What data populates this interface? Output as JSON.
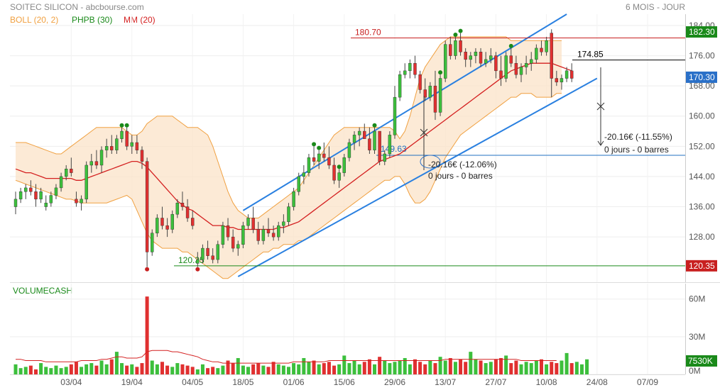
{
  "header": {
    "title": "SOITEC SILICON - abcbourse.com",
    "period": "6 MOIS - JOUR",
    "legend": [
      {
        "label": "BOLL (20, 2)",
        "color": "#f0a040"
      },
      {
        "label": "PHPB (30)",
        "color": "#1a8a1a"
      },
      {
        "label": "MM (20)",
        "color": "#d42020"
      }
    ]
  },
  "chart_data": [
    {
      "type": "candlestick",
      "panel": "price",
      "ylim": [
        116,
        187
      ],
      "y_ticks": [
        "184.00",
        "176.00",
        "168.00",
        "160.00",
        "152.00",
        "144.00",
        "136.00",
        "128.00"
      ],
      "x_ticks": [
        "03/04",
        "19/04",
        "04/05",
        "18/05",
        "01/06",
        "15/06",
        "29/06",
        "13/07",
        "27/07",
        "10/08",
        "24/08",
        "07/09"
      ],
      "x_tick_index": [
        11,
        23,
        35,
        45,
        55,
        65,
        75,
        85,
        95,
        105,
        115,
        125
      ],
      "ohlc": [
        [
          136,
          140,
          134,
          138
        ],
        [
          138,
          141,
          137,
          140
        ],
        [
          140,
          142,
          138,
          141
        ],
        [
          141,
          143,
          139,
          140
        ],
        [
          140,
          142,
          136,
          138
        ],
        [
          138,
          141,
          137,
          140
        ],
        [
          136,
          139,
          135,
          137
        ],
        [
          137,
          140,
          136,
          139
        ],
        [
          139,
          142,
          138,
          141
        ],
        [
          141,
          145,
          140,
          144
        ],
        [
          144,
          147,
          143,
          146
        ],
        [
          146,
          149,
          144,
          145
        ],
        [
          138,
          140,
          136,
          137
        ],
        [
          137,
          139,
          135,
          138
        ],
        [
          138,
          148,
          137,
          147
        ],
        [
          147,
          150,
          145,
          148
        ],
        [
          148,
          151,
          146,
          147
        ],
        [
          147,
          152,
          145,
          151
        ],
        [
          151,
          154,
          149,
          152
        ],
        [
          152,
          155,
          150,
          151
        ],
        [
          151,
          155,
          150,
          154
        ],
        [
          154,
          157,
          153,
          156
        ],
        [
          156,
          157,
          151,
          152
        ],
        [
          152,
          155,
          150,
          153
        ],
        [
          153,
          155,
          150,
          151
        ],
        [
          151,
          152,
          146,
          148
        ],
        [
          148,
          149,
          120,
          124
        ],
        [
          124,
          130,
          123,
          129
        ],
        [
          129,
          134,
          128,
          133
        ],
        [
          133,
          136,
          130,
          131
        ],
        [
          131,
          133,
          128,
          130
        ],
        [
          130,
          135,
          129,
          134
        ],
        [
          134,
          138,
          133,
          137
        ],
        [
          137,
          140,
          135,
          136
        ],
        [
          136,
          138,
          132,
          133
        ],
        [
          133,
          135,
          130,
          131
        ],
        [
          121,
          124,
          120,
          122
        ],
        [
          122,
          126,
          121,
          125
        ],
        [
          125,
          127,
          122,
          123
        ],
        [
          123,
          125,
          121,
          122
        ],
        [
          122,
          127,
          121,
          126
        ],
        [
          126,
          132,
          125,
          131
        ],
        [
          131,
          133,
          127,
          128
        ],
        [
          128,
          130,
          124,
          125
        ],
        [
          125,
          127,
          123,
          126
        ],
        [
          126,
          132,
          125,
          131
        ],
        [
          131,
          134,
          130,
          133
        ],
        [
          133,
          136,
          129,
          130
        ],
        [
          130,
          132,
          126,
          127
        ],
        [
          127,
          131,
          126,
          130
        ],
        [
          130,
          133,
          128,
          129
        ],
        [
          129,
          131,
          127,
          128
        ],
        [
          128,
          132,
          127,
          131
        ],
        [
          131,
          134,
          129,
          132
        ],
        [
          132,
          137,
          131,
          136
        ],
        [
          136,
          141,
          135,
          140
        ],
        [
          140,
          145,
          139,
          144
        ],
        [
          144,
          147,
          142,
          145
        ],
        [
          145,
          150,
          144,
          149
        ],
        [
          149,
          152,
          147,
          148
        ],
        [
          148,
          151,
          146,
          150
        ],
        [
          150,
          153,
          148,
          149
        ],
        [
          149,
          152,
          146,
          147
        ],
        [
          147,
          149,
          142,
          143
        ],
        [
          143,
          146,
          141,
          145
        ],
        [
          145,
          150,
          144,
          149
        ],
        [
          149,
          154,
          148,
          153
        ],
        [
          153,
          156,
          151,
          155
        ],
        [
          155,
          157,
          152,
          156
        ],
        [
          156,
          158,
          154,
          154
        ],
        [
          154,
          157,
          150,
          151
        ],
        [
          151,
          157,
          150,
          156
        ],
        [
          156,
          156,
          147,
          148
        ],
        [
          148,
          151,
          147,
          150
        ],
        [
          150,
          156,
          149,
          155
        ],
        [
          155,
          168,
          154,
          165
        ],
        [
          165,
          172,
          164,
          171
        ],
        [
          171,
          174,
          170,
          172
        ],
        [
          172,
          175,
          170,
          174
        ],
        [
          174,
          176,
          170,
          171
        ],
        [
          171,
          172,
          166,
          167
        ],
        [
          167,
          170,
          164,
          165
        ],
        [
          165,
          169,
          164,
          168
        ],
        [
          168,
          172,
          159,
          161
        ],
        [
          161,
          171,
          160,
          170
        ],
        [
          170,
          180,
          169,
          179
        ],
        [
          179,
          181,
          175,
          176
        ],
        [
          176,
          181,
          175,
          180
        ],
        [
          180,
          182,
          176,
          177
        ],
        [
          177,
          178,
          173,
          175
        ],
        [
          175,
          177,
          173,
          176
        ],
        [
          176,
          178,
          174,
          177
        ],
        [
          177,
          178,
          173,
          174
        ],
        [
          174,
          177,
          173,
          175
        ],
        [
          175,
          178,
          174,
          176
        ],
        [
          176,
          177,
          170,
          172
        ],
        [
          172,
          176,
          168,
          170
        ],
        [
          170,
          177,
          169,
          176
        ],
        [
          176,
          178,
          173,
          174
        ],
        [
          174,
          176,
          170,
          171
        ],
        [
          171,
          174,
          169,
          173
        ],
        [
          173,
          176,
          171,
          174
        ],
        [
          174,
          177,
          172,
          175
        ],
        [
          175,
          179,
          174,
          178
        ],
        [
          178,
          180,
          176,
          177
        ],
        [
          177,
          181,
          176,
          180
        ],
        [
          182,
          183,
          165,
          170
        ],
        [
          170,
          172,
          168,
          169
        ],
        [
          169,
          171,
          167,
          170
        ],
        [
          170,
          173,
          169,
          172
        ],
        [
          172,
          174,
          169,
          170
        ]
      ],
      "bollinger": {
        "upper": [
          153,
          153,
          153,
          152.5,
          152,
          151.5,
          151,
          150.5,
          150,
          150,
          151,
          152,
          153,
          154,
          155,
          156,
          157,
          157,
          157,
          157,
          157,
          157,
          156,
          155,
          155,
          156,
          158,
          159,
          160,
          160,
          160,
          160,
          159,
          158,
          157,
          157,
          157,
          156,
          155,
          152,
          148,
          144,
          140,
          137,
          135,
          134,
          133,
          133,
          133,
          134,
          135,
          136,
          137,
          138,
          139,
          140,
          141,
          143,
          145,
          147,
          149,
          151,
          153,
          155,
          156,
          157,
          157,
          157,
          157,
          157,
          157,
          157,
          157,
          157,
          157,
          156,
          154,
          156,
          160,
          165,
          170,
          173,
          175,
          177,
          179,
          180,
          181,
          181,
          181,
          181,
          181,
          181,
          181,
          181,
          181,
          181,
          181,
          181,
          180,
          180,
          180,
          180,
          180,
          180,
          180,
          180,
          180,
          180,
          180
        ],
        "lower": [
          143,
          142.5,
          142,
          141.5,
          141,
          140.5,
          140,
          139.5,
          139,
          138.5,
          138,
          138,
          137.5,
          137,
          137,
          137,
          137,
          137,
          137,
          137.5,
          138,
          138.5,
          139,
          138,
          135,
          132,
          129,
          127,
          126,
          125,
          125,
          125,
          125,
          124,
          124,
          123,
          122,
          121,
          120,
          119,
          118,
          117,
          117,
          118,
          119,
          120,
          121,
          122,
          123,
          124,
          124,
          125,
          125,
          126,
          126,
          126,
          127,
          127,
          128,
          129,
          130,
          131,
          132,
          133,
          134,
          135,
          136,
          137,
          138,
          139,
          140,
          141,
          142,
          143,
          143,
          144,
          144,
          142,
          139,
          137,
          137,
          138,
          140,
          143,
          146,
          149,
          151,
          153,
          155,
          156,
          157,
          158,
          159,
          160,
          161,
          162,
          163,
          164,
          165,
          165,
          166,
          166,
          166,
          165,
          165,
          165,
          165,
          166,
          166
        ]
      },
      "mm20": [
        146,
        145.5,
        145,
        145,
        144.5,
        144,
        143.5,
        143.5,
        143.5,
        143.5,
        143.5,
        143.5,
        143,
        143,
        143.5,
        144,
        144.5,
        145,
        145.5,
        146,
        146.5,
        147,
        147.5,
        148,
        148,
        147.5,
        146.5,
        145,
        143.5,
        142,
        140.5,
        139,
        137.5,
        136.5,
        135.5,
        135,
        134,
        133,
        132,
        131,
        131,
        131,
        130.5,
        130.5,
        130,
        130,
        130,
        130,
        130,
        130,
        130,
        130,
        130.5,
        130.5,
        131,
        131.5,
        132,
        133,
        134,
        135,
        136,
        137,
        138,
        139,
        140,
        141,
        142,
        143,
        144,
        145,
        146,
        147,
        148,
        148.5,
        149,
        149.5,
        150,
        151,
        152,
        153,
        154,
        155,
        156,
        157,
        158,
        159,
        160,
        161,
        162,
        163,
        164,
        165,
        166,
        167,
        168,
        169,
        170,
        171,
        172,
        172.5,
        173,
        173.5,
        174,
        174,
        174,
        174,
        174,
        173.5,
        173,
        172.5,
        172
      ],
      "hlines": [
        {
          "value": 180.7,
          "label": "180.70",
          "color": "#c82020"
        },
        {
          "value": 120.35,
          "label": "120.35",
          "color": "#1a8a1a"
        },
        {
          "value": 149.63,
          "label": "149.63",
          "color": "#2070c0"
        },
        {
          "value": 174.85,
          "label": "174.85",
          "color": "#000000"
        }
      ],
      "price_badges": [
        {
          "value": 182.3,
          "label": "182.30",
          "color": "#1a8a1a"
        },
        {
          "value": 170.3,
          "label": "170.30",
          "color": "#2a70c8"
        },
        {
          "value": 120.35,
          "label": "120.35",
          "color": "#c82020"
        }
      ],
      "annotations": [
        {
          "text": "-20.16€ (-12.06%)",
          "sub": "0 jours - 0 barres"
        },
        {
          "text": "-20.16€ (-11.55%)",
          "sub": "0 jours - 0 barres"
        }
      ]
    },
    {
      "type": "bar",
      "panel": "volume",
      "title": "VOLUMECASH",
      "y_ticks": [
        "60M",
        "30M",
        "0M"
      ],
      "ylim": [
        0,
        70
      ],
      "current_badge": "7530K",
      "values": [
        8,
        5,
        6,
        7,
        4,
        9,
        6,
        5,
        7,
        5,
        6,
        8,
        10,
        6,
        8,
        9,
        7,
        11,
        8,
        12,
        18,
        9,
        7,
        8,
        6,
        9,
        62,
        11,
        8,
        10,
        7,
        6,
        9,
        8,
        7,
        6,
        4,
        8,
        5,
        6,
        5,
        7,
        11,
        9,
        13,
        7,
        6,
        8,
        9,
        7,
        6,
        10,
        8,
        7,
        6,
        9,
        8,
        13,
        10,
        11,
        8,
        9,
        10,
        7,
        8,
        15,
        9,
        11,
        8,
        10,
        12,
        8,
        14,
        11,
        9,
        10,
        11,
        13,
        8,
        12,
        10,
        8,
        11,
        9,
        14,
        11,
        13,
        10,
        12,
        10,
        18,
        12,
        11,
        9,
        10,
        12,
        13,
        15,
        9,
        11,
        8,
        10,
        9,
        11,
        12,
        8,
        10,
        9,
        11,
        17,
        9,
        10,
        8,
        12
      ],
      "mm": [
        12,
        12,
        11,
        11,
        11,
        11,
        10,
        10,
        10,
        10,
        10,
        10,
        10,
        11,
        11,
        11,
        11,
        12,
        12,
        13,
        14,
        14,
        13,
        13,
        13,
        14,
        18,
        19,
        19,
        19,
        19,
        18,
        18,
        17,
        16,
        15,
        14,
        12,
        11,
        10,
        10,
        9,
        9,
        9,
        9,
        9,
        9,
        9,
        9,
        9,
        9,
        9,
        9,
        9,
        9,
        10,
        10,
        10,
        10,
        10,
        10,
        10,
        11,
        11,
        11,
        11,
        11,
        11,
        11,
        11,
        11,
        11,
        11,
        11,
        11,
        11,
        11,
        11,
        11,
        11,
        11,
        11,
        11,
        11,
        11,
        12,
        12,
        12,
        12,
        12,
        12,
        12,
        12,
        12,
        12,
        12,
        12,
        12,
        12,
        12,
        11,
        11,
        11,
        11,
        11,
        11,
        11,
        11
      ]
    }
  ]
}
